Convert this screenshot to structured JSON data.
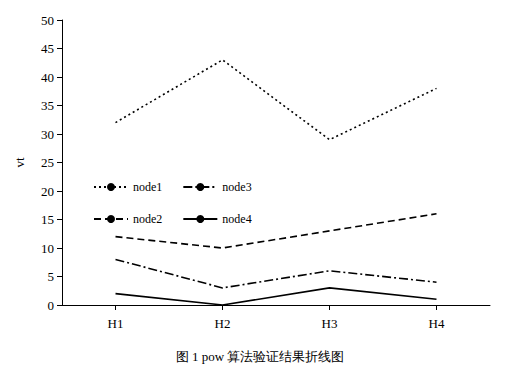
{
  "chart_data": {
    "type": "line",
    "title": "图 1 pow 算法验证结果折线图",
    "y_label": "vt",
    "categories": [
      "H1",
      "H2",
      "H3",
      "H4"
    ],
    "series": [
      {
        "name": "node1",
        "color": "#000000",
        "line_style": "dotted",
        "values": [
          32,
          43,
          29,
          38
        ]
      },
      {
        "name": "node2",
        "color": "#000000",
        "line_style": "dashed",
        "values": [
          12,
          10,
          13,
          16
        ]
      },
      {
        "name": "node3",
        "color": "#000000",
        "line_style": "dashdot",
        "values": [
          8,
          3,
          6,
          4
        ]
      },
      {
        "name": "node4",
        "color": "#000000",
        "line_style": "solid",
        "values": [
          2,
          0,
          3,
          1
        ]
      }
    ],
    "ylim": [
      0,
      50
    ],
    "yticks": [
      0,
      5,
      10,
      15,
      20,
      25,
      30,
      35,
      40,
      45,
      50
    ],
    "grid": false,
    "legend": "upper left"
  }
}
